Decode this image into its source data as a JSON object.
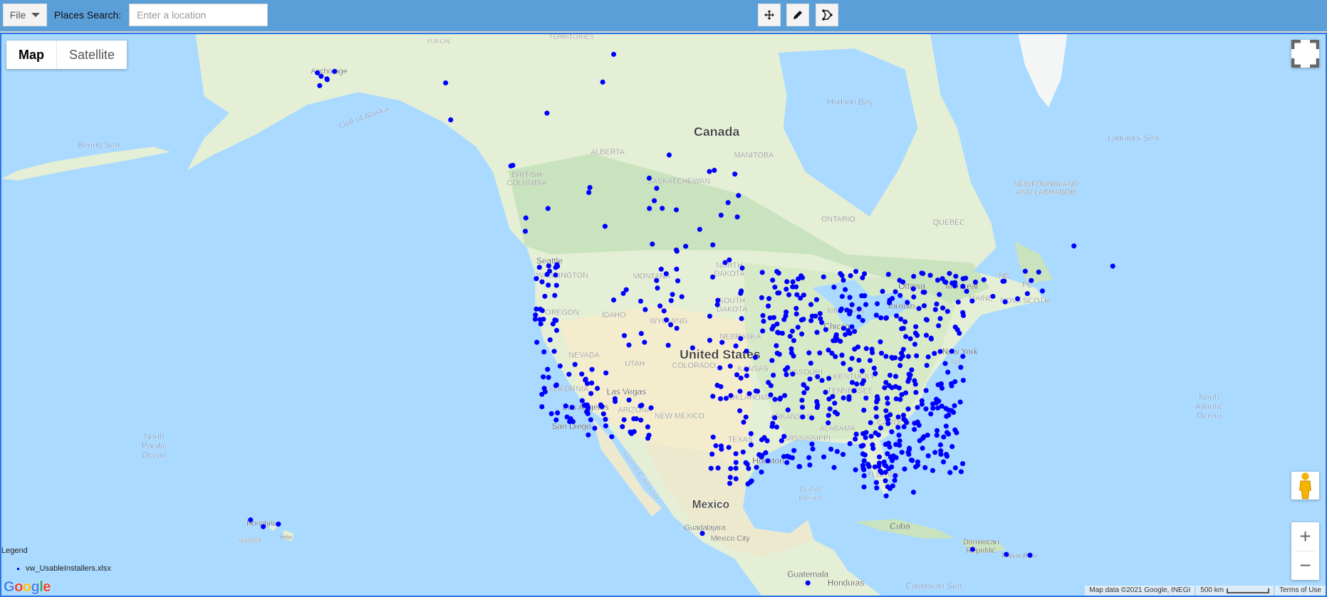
{
  "toolbar": {
    "file_label": "File",
    "places_label": "Places Search:",
    "places_placeholder": "Enter a location",
    "tools": [
      {
        "name": "pan-icon"
      },
      {
        "name": "pencil-icon"
      },
      {
        "name": "lasso-icon"
      }
    ]
  },
  "map": {
    "type_buttons": {
      "map": "Map",
      "satellite": "Satellite"
    },
    "active_type": "Map",
    "zoom_in": "+",
    "zoom_out": "−",
    "colors": {
      "water": "#aadaff",
      "land": "#e4efd5",
      "forest": "#c8e3bd",
      "desert": "#f3eccd",
      "marker": "#0000ff"
    },
    "labels": {
      "canada": "Canada",
      "united_states": "United States",
      "mexico": "Mexico",
      "hudson_bay": "Hudson Bay",
      "labrador_sea": "Labrador Sea",
      "bering_sea": "Bering Sea",
      "gulf_of_alaska": "Gulf of Alaska",
      "north_pacific_1": "North",
      "north_pacific_2": "Pacific",
      "north_pacific_3": "Ocean",
      "north_atlantic_1": "North",
      "north_atlantic_2": "Atlantic",
      "north_atlantic_3": "Ocean",
      "gulf_of_mexico_1": "Gulf of",
      "gulf_of_mexico_2": "Mexico",
      "gulf_of_california": "Gulf of California",
      "cuba": "Cuba",
      "caribbean_sea": "Caribbean Sea",
      "guatemala": "Guatemala",
      "honduras": "Honduras",
      "dominican_1": "Dominican",
      "dominican_2": "Republic",
      "puerto_rico": "Puerto Rico",
      "anchorage": "Anchorage",
      "yukon": "YUKON",
      "territories": "TERRITORIES",
      "alberta": "ALBERTA",
      "bc_1": "BRITISH",
      "bc_2": "COLUMBIA",
      "saskatchewan": "SASKATCHEWAN",
      "manitoba": "MANITOBA",
      "ontario": "ONTARIO",
      "quebec": "QUEBEC",
      "nl_1": "NEWFOUNDLAND",
      "nl_2": "AND LABRADOR",
      "seattle": "Seattle",
      "washington": "WASHINGTON",
      "montana": "MONTANA",
      "north_dakota_1": "NORTH",
      "north_dakota_2": "DAKOTA",
      "south_dakota_1": "SOUTH",
      "south_dakota_2": "DAKOTA",
      "oregon": "OREGON",
      "idaho": "IDAHO",
      "wyoming": "WYOMING",
      "nevada": "NEVADA",
      "utah": "UTAH",
      "california": "CALIFORNIA",
      "las_vegas": "Las Vegas",
      "los_angeles": "Los Angeles",
      "san_diego": "San Diego",
      "arizona": "ARIZONA",
      "new_mexico": "NEW MEXICO",
      "nebraska": "NEBRASKA",
      "kansas": "KANSAS",
      "colorado": "COLORADO",
      "oklahoma": "OKLAHOMA",
      "texas": "TEXAS",
      "houston": "Houston",
      "missouri": "MISSOURI",
      "chicago": "Chicago",
      "michigan": "MICHIGAN",
      "toronto": "Toronto",
      "ottawa": "Ottawa",
      "montreal": "Montreal",
      "new_york": "New York",
      "nb": "NB",
      "pe": "PE",
      "maine": "MAINE",
      "nova_scotia": "NOVA SCOTIA",
      "honolulu": "Honolulu",
      "hawaii": "HAWAII",
      "hilo": "Hilo",
      "guadalajara": "Guadalajara",
      "mexico_city": "Mexico City",
      "arkansas": "ARKANSAS",
      "tennessee": "TENNESSEE",
      "carolina": "CAROLINA",
      "florida": "FLORIDA",
      "nj": "NJ",
      "kentucky": "KENTUCKY",
      "mississippi": "MISSISSIPPI",
      "alabama": "ALABAMA"
    }
  },
  "legend": {
    "title": "Legend",
    "items": [
      {
        "label": "vw_UsableInstallers.xlsx",
        "color": "#0000ff"
      }
    ]
  },
  "attribution": {
    "map_data": "Map data ©2021 Google, INEGI",
    "scale": "500 km",
    "terms": "Terms of Use"
  }
}
